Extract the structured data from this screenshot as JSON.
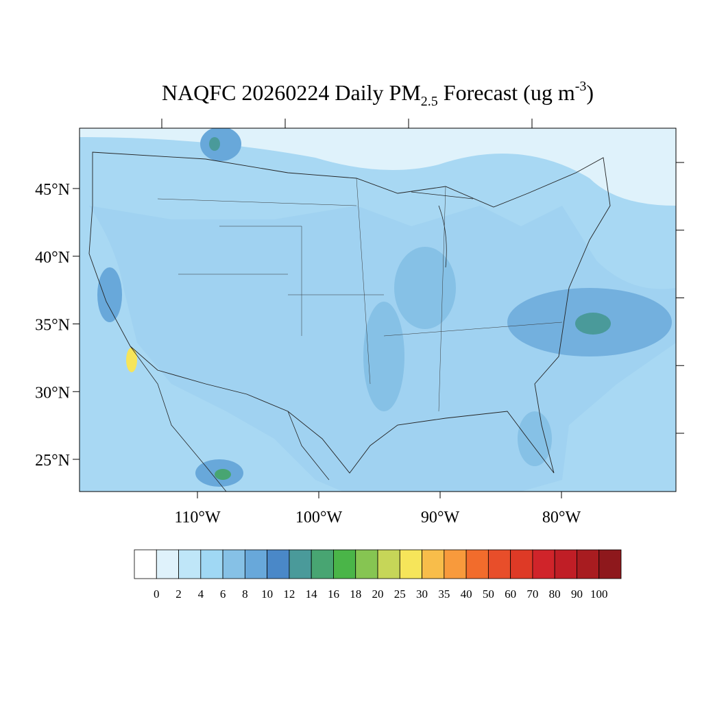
{
  "title": {
    "main": "NAQFC 20260224 Daily PM",
    "sub": "2.5",
    "mid": " Forecast (ug m",
    "sup": "-3",
    "end": ")"
  },
  "map": {
    "lat_ticks": [
      {
        "value": 45,
        "label": "45°N"
      },
      {
        "value": 40,
        "label": "40°N"
      },
      {
        "value": 35,
        "label": "35°N"
      },
      {
        "value": 30,
        "label": "30°N"
      },
      {
        "value": 25,
        "label": "25°N"
      }
    ],
    "lon_ticks": [
      {
        "value": -110,
        "label": "110°W"
      },
      {
        "value": -100,
        "label": "100°W"
      },
      {
        "value": -90,
        "label": "90°W"
      },
      {
        "value": -80,
        "label": "80°W"
      }
    ]
  },
  "colorbar": {
    "levels": [
      0,
      2,
      4,
      6,
      8,
      10,
      12,
      14,
      16,
      18,
      20,
      25,
      30,
      35,
      40,
      50,
      60,
      70,
      80,
      90,
      100
    ],
    "colors": [
      "#ffffff",
      "#dff2fb",
      "#bfe6f8",
      "#a0d8f4",
      "#86c1e6",
      "#68a8da",
      "#4a88c8",
      "#4a9a9a",
      "#48a572",
      "#4ab548",
      "#86c552",
      "#c6d658",
      "#f6e55a",
      "#f8bd4a",
      "#f89a3c",
      "#f26c2c",
      "#e84e2a",
      "#de3a26",
      "#d0242a",
      "#c01e26",
      "#a81c20",
      "#8e181c"
    ]
  }
}
